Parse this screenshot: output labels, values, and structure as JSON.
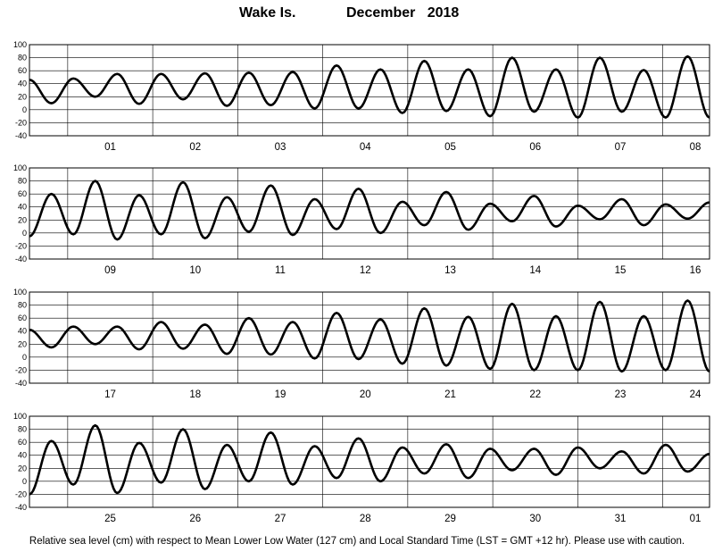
{
  "title": {
    "location": "Wake Is.",
    "period": "December   2018"
  },
  "footer": "Relative sea level (cm) with respect to Mean Lower Low Water (127 cm) and Local Standard Time (LST = GMT +12 hr). Please use with caution.",
  "chart_data": {
    "type": "line",
    "units": "cm",
    "ylim": [
      -40,
      100
    ],
    "yticks": [
      -40,
      -20,
      0,
      20,
      40,
      60,
      80,
      100
    ],
    "grid": true,
    "panels": [
      {
        "day_labels": [
          "01",
          "02",
          "03",
          "04",
          "05",
          "06",
          "07",
          "08"
        ],
        "series_values": [
          46,
          10,
          48,
          20,
          55,
          9,
          55,
          16,
          56,
          6,
          57,
          7,
          58,
          2,
          68,
          2,
          62,
          -5,
          75,
          -2,
          62,
          -10,
          80,
          -3,
          62,
          -12,
          80,
          -3,
          61,
          -12,
          82,
          -12
        ]
      },
      {
        "day_labels": [
          "09",
          "10",
          "11",
          "12",
          "13",
          "14",
          "15",
          "16"
        ],
        "series_values": [
          -5,
          60,
          -2,
          80,
          -10,
          58,
          -2,
          78,
          -8,
          55,
          2,
          73,
          -3,
          52,
          6,
          68,
          0,
          48,
          12,
          63,
          5,
          45,
          18,
          57,
          10,
          42,
          21,
          52,
          12,
          44,
          22,
          47
        ]
      },
      {
        "day_labels": [
          "17",
          "18",
          "19",
          "20",
          "21",
          "22",
          "23",
          "24"
        ],
        "series_values": [
          42,
          15,
          47,
          20,
          47,
          12,
          54,
          13,
          50,
          5,
          60,
          4,
          54,
          -2,
          68,
          -3,
          58,
          -10,
          75,
          -13,
          62,
          -18,
          82,
          -20,
          63,
          -20,
          85,
          -22,
          63,
          -20,
          87,
          -22
        ]
      },
      {
        "day_labels": [
          "25",
          "26",
          "27",
          "28",
          "29",
          "30",
          "31",
          "01"
        ],
        "series_values": [
          -20,
          62,
          -5,
          86,
          -18,
          59,
          -2,
          80,
          -12,
          56,
          0,
          75,
          -5,
          54,
          5,
          66,
          0,
          52,
          12,
          57,
          5,
          50,
          17,
          50,
          10,
          52,
          20,
          46,
          12,
          56,
          15,
          42
        ]
      }
    ]
  }
}
